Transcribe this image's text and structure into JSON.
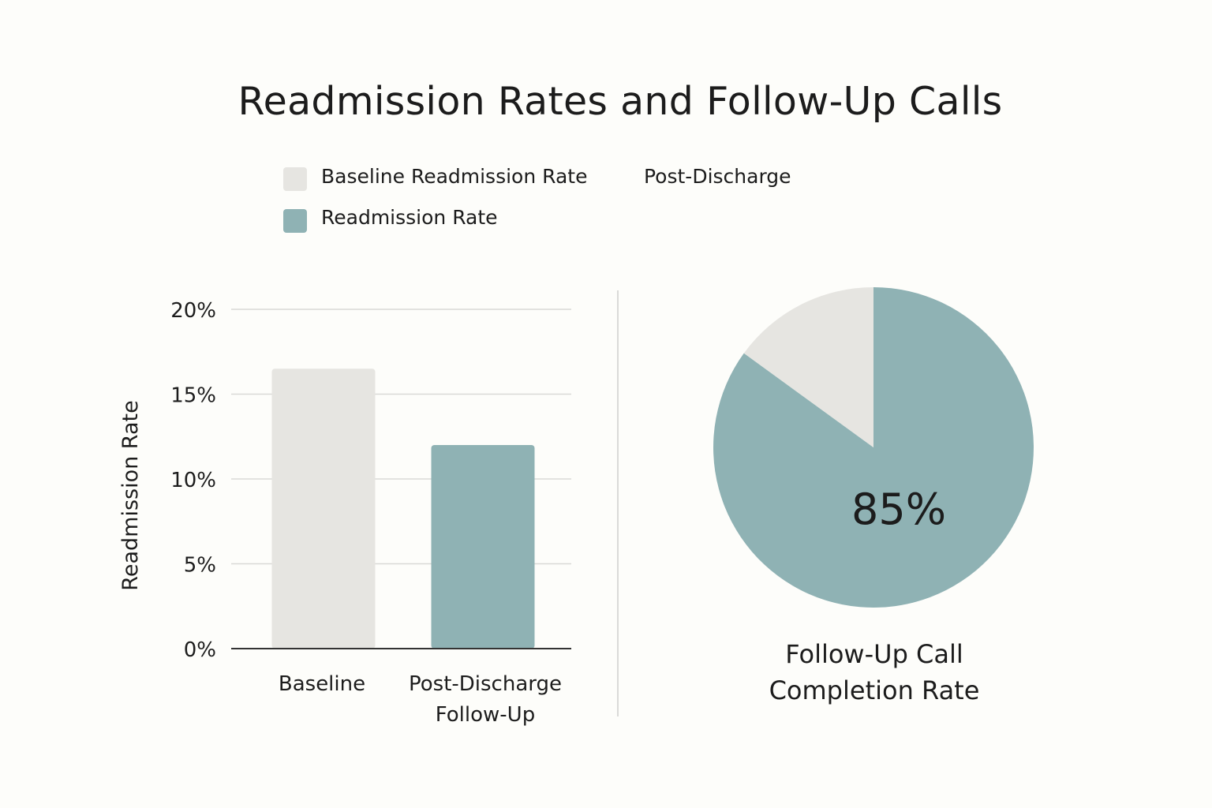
{
  "colors": {
    "background": "#fdfdfa",
    "baseline": "#e6e5e1",
    "follow_up": "#8fb2b4",
    "grid": "#d9d9d6",
    "axis": "#333333",
    "text": "#1c1c1c"
  },
  "legend": {
    "items": [
      {
        "label": "Baseline Readmission Rate",
        "color": "#e6e5e1"
      },
      {
        "label": "Post-Discharge",
        "color": null
      },
      {
        "label": "Readmission Rate",
        "color": "#8fb2b4"
      }
    ]
  },
  "chart_data": [
    {
      "type": "bar",
      "title": "Readmission Rates and Follow-Up Calls",
      "ylabel": "Readmission Rate",
      "xlabel": "",
      "ylim": [
        0,
        20
      ],
      "yticks": [
        "0%",
        "5%",
        "10%",
        "15%",
        "20%"
      ],
      "grid": true,
      "categories": [
        {
          "lines": [
            "Baseline"
          ]
        },
        {
          "lines": [
            "Post-Discharge",
            "Follow-Up"
          ]
        }
      ],
      "values": [
        16.5,
        12
      ],
      "bar_colors": [
        "#e6e5e1",
        "#8fb2b4"
      ]
    },
    {
      "type": "pie",
      "caption_lines": [
        "Follow-Up Call",
        "Completion Rate"
      ],
      "slices": [
        {
          "value": 85,
          "label": "85%",
          "color": "#8fb2b4"
        },
        {
          "value": 15,
          "label": "",
          "color": "#e6e5e1"
        }
      ]
    }
  ]
}
